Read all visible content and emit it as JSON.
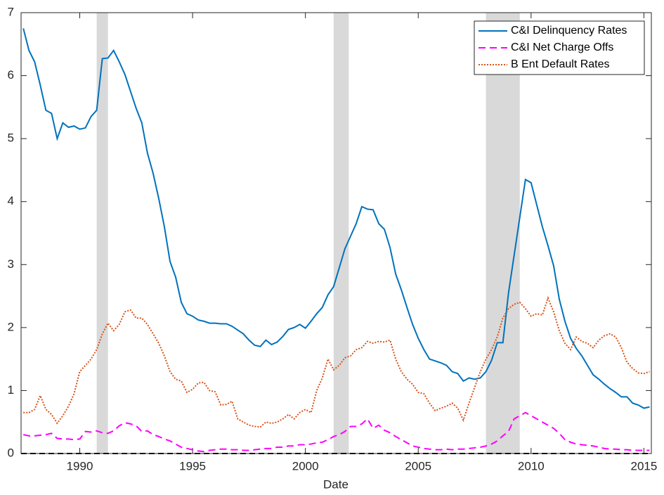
{
  "chart_data": {
    "type": "line",
    "x_label": "Date",
    "xlim": [
      1987.4,
      2015.33
    ],
    "ylim": [
      0,
      7
    ],
    "xticks": [
      1990,
      1995,
      2000,
      2005,
      2010,
      2015
    ],
    "yticks": [
      0,
      1,
      2,
      3,
      4,
      5,
      6,
      7
    ],
    "legend": "top-right",
    "grid": false,
    "hline": {
      "value": 0,
      "color": "#000000"
    },
    "shaded_periods": [
      [
        1990.75,
        1991.25
      ],
      [
        2001.25,
        2001.92
      ],
      [
        2008.0,
        2009.5
      ]
    ],
    "shade_color": "#d9d9d9",
    "x": [
      1987.5,
      1987.75,
      1988,
      1988.25,
      1988.5,
      1988.75,
      1989,
      1989.25,
      1989.5,
      1989.75,
      1990,
      1990.25,
      1990.5,
      1990.75,
      1991,
      1991.25,
      1991.5,
      1991.75,
      1992,
      1992.25,
      1992.5,
      1992.75,
      1993,
      1993.25,
      1993.5,
      1993.75,
      1994,
      1994.25,
      1994.5,
      1994.75,
      1995,
      1995.25,
      1995.5,
      1995.75,
      1996,
      1996.25,
      1996.5,
      1996.75,
      1997,
      1997.25,
      1997.5,
      1997.75,
      1998,
      1998.25,
      1998.5,
      1998.75,
      1999,
      1999.25,
      1999.5,
      1999.75,
      2000,
      2000.25,
      2000.5,
      2000.75,
      2001,
      2001.25,
      2001.5,
      2001.75,
      2002,
      2002.25,
      2002.5,
      2002.75,
      2003,
      2003.25,
      2003.5,
      2003.75,
      2004,
      2004.25,
      2004.5,
      2004.75,
      2005,
      2005.25,
      2005.5,
      2005.75,
      2006,
      2006.25,
      2006.5,
      2006.75,
      2007,
      2007.25,
      2007.5,
      2007.75,
      2008,
      2008.25,
      2008.5,
      2008.75,
      2009,
      2009.25,
      2009.5,
      2009.75,
      2010,
      2010.25,
      2010.5,
      2010.75,
      2011,
      2011.25,
      2011.5,
      2011.75,
      2012,
      2012.25,
      2012.5,
      2012.75,
      2013,
      2013.25,
      2013.5,
      2013.75,
      2014,
      2014.25,
      2014.5,
      2014.75,
      2015,
      2015.25
    ],
    "series": [
      {
        "name": "C&I Delinquency Rates",
        "color": "#0072bd",
        "dash": "solid",
        "values": [
          6.75,
          6.4,
          6.22,
          5.85,
          5.45,
          5.4,
          5.0,
          5.25,
          5.18,
          5.2,
          5.15,
          5.17,
          5.35,
          5.45,
          6.27,
          6.28,
          6.4,
          6.22,
          6.02,
          5.75,
          5.48,
          5.25,
          4.77,
          4.45,
          4.05,
          3.6,
          3.05,
          2.8,
          2.4,
          2.22,
          2.18,
          2.12,
          2.1,
          2.07,
          2.07,
          2.06,
          2.06,
          2.02,
          1.96,
          1.9,
          1.8,
          1.72,
          1.7,
          1.8,
          1.73,
          1.77,
          1.86,
          1.97,
          2.0,
          2.05,
          1.99,
          2.1,
          2.22,
          2.32,
          2.52,
          2.65,
          2.95,
          3.25,
          3.45,
          3.65,
          3.92,
          3.88,
          3.87,
          3.65,
          3.56,
          3.27,
          2.85,
          2.6,
          2.32,
          2.05,
          1.83,
          1.65,
          1.5,
          1.47,
          1.44,
          1.4,
          1.3,
          1.27,
          1.15,
          1.2,
          1.18,
          1.2,
          1.3,
          1.48,
          1.76,
          1.76,
          2.55,
          3.15,
          3.75,
          4.35,
          4.3,
          3.95,
          3.6,
          3.3,
          2.98,
          2.45,
          2.1,
          1.83,
          1.67,
          1.55,
          1.4,
          1.25,
          1.18,
          1.1,
          1.03,
          0.97,
          0.9,
          0.9,
          0.8,
          0.77,
          0.72,
          0.74
        ]
      },
      {
        "name": "C&I Net Charge Offs",
        "color": "#ff00ff",
        "dash": "dashed",
        "values": [
          0.3,
          0.28,
          0.28,
          0.29,
          0.3,
          0.32,
          0.24,
          0.23,
          0.23,
          0.22,
          0.23,
          0.35,
          0.34,
          0.36,
          0.33,
          0.32,
          0.36,
          0.44,
          0.49,
          0.47,
          0.44,
          0.35,
          0.36,
          0.3,
          0.27,
          0.23,
          0.2,
          0.15,
          0.1,
          0.08,
          0.06,
          0.04,
          0.03,
          0.05,
          0.06,
          0.07,
          0.07,
          0.06,
          0.06,
          0.05,
          0.05,
          0.06,
          0.07,
          0.08,
          0.08,
          0.1,
          0.1,
          0.12,
          0.12,
          0.14,
          0.14,
          0.15,
          0.17,
          0.18,
          0.22,
          0.27,
          0.3,
          0.35,
          0.43,
          0.43,
          0.47,
          0.55,
          0.4,
          0.45,
          0.37,
          0.33,
          0.27,
          0.22,
          0.17,
          0.12,
          0.1,
          0.08,
          0.07,
          0.06,
          0.06,
          0.07,
          0.06,
          0.07,
          0.07,
          0.08,
          0.09,
          0.1,
          0.12,
          0.15,
          0.2,
          0.28,
          0.35,
          0.55,
          0.6,
          0.65,
          0.6,
          0.55,
          0.5,
          0.45,
          0.4,
          0.32,
          0.22,
          0.18,
          0.15,
          0.14,
          0.13,
          0.12,
          0.1,
          0.08,
          0.07,
          0.07,
          0.06,
          0.06,
          0.05,
          0.05,
          0.05,
          0.05
        ]
      },
      {
        "name": "B Ent Default Rates",
        "color": "#d95319",
        "dash": "dotted",
        "values": [
          0.65,
          0.65,
          0.7,
          0.92,
          0.7,
          0.62,
          0.48,
          0.6,
          0.75,
          0.95,
          1.3,
          1.4,
          1.5,
          1.65,
          1.9,
          2.07,
          1.95,
          2.05,
          2.25,
          2.28,
          2.15,
          2.15,
          2.05,
          1.9,
          1.75,
          1.55,
          1.3,
          1.18,
          1.15,
          0.97,
          1.02,
          1.12,
          1.13,
          1.0,
          0.98,
          0.77,
          0.78,
          0.83,
          0.55,
          0.5,
          0.45,
          0.43,
          0.42,
          0.5,
          0.48,
          0.5,
          0.55,
          0.62,
          0.55,
          0.65,
          0.7,
          0.65,
          1.0,
          1.2,
          1.5,
          1.33,
          1.4,
          1.52,
          1.55,
          1.65,
          1.68,
          1.78,
          1.75,
          1.78,
          1.77,
          1.8,
          1.5,
          1.3,
          1.18,
          1.1,
          0.97,
          0.95,
          0.8,
          0.68,
          0.72,
          0.75,
          0.8,
          0.72,
          0.53,
          0.8,
          1.05,
          1.3,
          1.5,
          1.65,
          1.85,
          2.15,
          2.3,
          2.37,
          2.4,
          2.3,
          2.18,
          2.22,
          2.2,
          2.47,
          2.25,
          1.95,
          1.75,
          1.65,
          1.85,
          1.78,
          1.75,
          1.68,
          1.8,
          1.87,
          1.9,
          1.85,
          1.68,
          1.45,
          1.35,
          1.28,
          1.27,
          1.3
        ]
      }
    ]
  }
}
